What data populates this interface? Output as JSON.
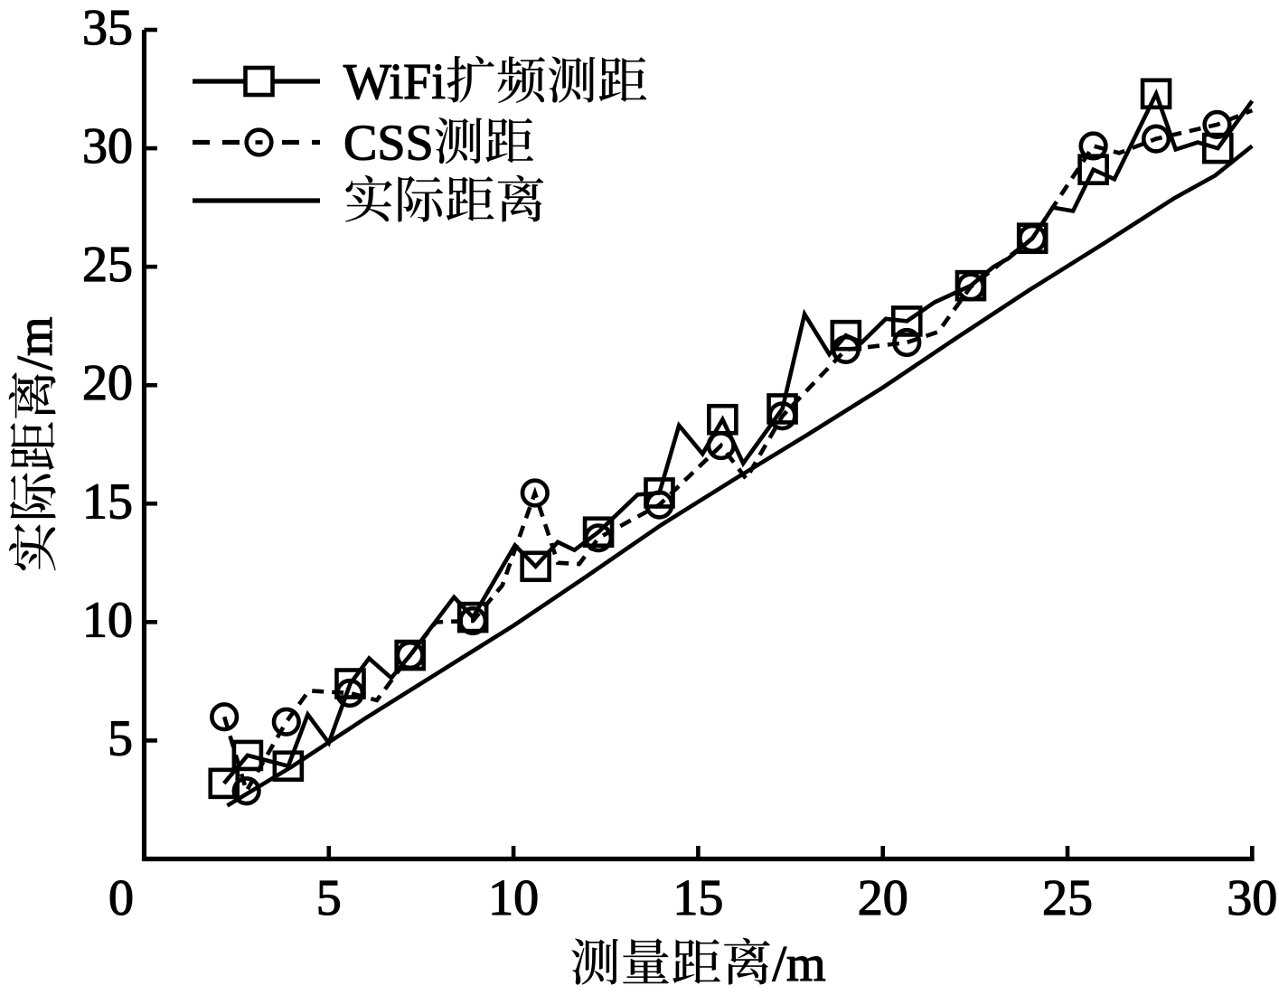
{
  "figure": {
    "background_color": "#ffffff",
    "ink_color": "#000000"
  },
  "chart_data": {
    "type": "line",
    "title": "",
    "xlabel": "测量距离/m",
    "ylabel": "实际距离/m",
    "xlim": [
      0,
      30
    ],
    "ylim": [
      0,
      35
    ],
    "xticks": [
      0,
      5,
      10,
      15,
      20,
      25,
      30
    ],
    "yticks": [
      5,
      10,
      15,
      20,
      25,
      30,
      35
    ],
    "grid": false,
    "legend_position": "upper left",
    "legend": [
      "WiFi扩频测距",
      "CSS测距",
      "实际距离"
    ],
    "series": [
      {
        "name": "WiFi扩频测距",
        "line_style": "solid",
        "marker": "square",
        "color": "#000000",
        "points": [
          [
            2.16,
            3.19
          ],
          [
            2.8,
            4.37
          ],
          [
            3.9,
            3.92
          ],
          [
            4.43,
            6.1
          ],
          [
            5.0,
            4.9
          ],
          [
            5.58,
            7.4
          ],
          [
            6.09,
            8.47
          ],
          [
            6.69,
            7.64
          ],
          [
            7.2,
            8.6
          ],
          [
            8.39,
            11.05
          ],
          [
            8.9,
            10.2
          ],
          [
            10.04,
            13.24
          ],
          [
            10.6,
            12.35
          ],
          [
            11.2,
            13.38
          ],
          [
            11.65,
            13.04
          ],
          [
            12.3,
            13.8
          ],
          [
            13.36,
            15.38
          ],
          [
            13.95,
            15.45
          ],
          [
            14.48,
            18.3
          ],
          [
            15.12,
            17.1
          ],
          [
            15.66,
            18.55
          ],
          [
            16.22,
            16.7
          ],
          [
            17.28,
            19.0
          ],
          [
            17.88,
            23.0
          ],
          [
            18.55,
            21.3
          ],
          [
            19.0,
            22.1
          ],
          [
            19.43,
            21.8
          ],
          [
            20.08,
            22.8
          ],
          [
            20.65,
            22.7
          ],
          [
            21.4,
            23.5
          ],
          [
            22.38,
            24.2
          ],
          [
            23.0,
            25.0
          ],
          [
            23.4,
            25.35
          ],
          [
            24.05,
            26.2
          ],
          [
            24.6,
            27.5
          ],
          [
            25.15,
            27.35
          ],
          [
            25.7,
            29.1
          ],
          [
            26.27,
            28.7
          ],
          [
            27.4,
            32.3
          ],
          [
            27.93,
            29.95
          ],
          [
            28.53,
            30.25
          ],
          [
            29.07,
            30.0
          ],
          [
            30.0,
            32.0
          ]
        ],
        "marker_points": [
          [
            2.16,
            3.19
          ],
          [
            2.8,
            4.37
          ],
          [
            3.9,
            3.92
          ],
          [
            5.58,
            7.4
          ],
          [
            7.2,
            8.6
          ],
          [
            8.9,
            10.2
          ],
          [
            10.6,
            12.35
          ],
          [
            12.3,
            13.8
          ],
          [
            13.95,
            15.45
          ],
          [
            15.66,
            18.55
          ],
          [
            17.28,
            19.0
          ],
          [
            19.0,
            22.1
          ],
          [
            20.65,
            22.7
          ],
          [
            22.38,
            24.2
          ],
          [
            24.05,
            26.2
          ],
          [
            25.7,
            29.1
          ],
          [
            27.4,
            32.3
          ],
          [
            29.07,
            30.0
          ]
        ]
      },
      {
        "name": "CSS测距",
        "line_style": "dashed",
        "marker": "circle",
        "color": "#000000",
        "points": [
          [
            2.17,
            6.0
          ],
          [
            2.77,
            2.87
          ],
          [
            3.85,
            5.79
          ],
          [
            4.46,
            7.1
          ],
          [
            5.57,
            7.0
          ],
          [
            6.3,
            6.7
          ],
          [
            7.2,
            8.6
          ],
          [
            7.9,
            10.0
          ],
          [
            8.9,
            10.05
          ],
          [
            9.7,
            11.55
          ],
          [
            10.58,
            15.45
          ],
          [
            11.2,
            12.5
          ],
          [
            11.78,
            12.45
          ],
          [
            12.3,
            13.55
          ],
          [
            13.95,
            14.95
          ],
          [
            15.62,
            17.45
          ],
          [
            16.3,
            16.05
          ],
          [
            17.28,
            18.7
          ],
          [
            19.0,
            21.5
          ],
          [
            20.65,
            21.8
          ],
          [
            21.5,
            22.25
          ],
          [
            22.38,
            24.15
          ],
          [
            24.05,
            26.2
          ],
          [
            25.7,
            30.1
          ],
          [
            26.4,
            29.8
          ],
          [
            27.4,
            30.4
          ],
          [
            29.05,
            31.0
          ],
          [
            30.0,
            31.6
          ]
        ],
        "marker_points": [
          [
            2.17,
            6.0
          ],
          [
            2.77,
            2.87
          ],
          [
            3.85,
            5.79
          ],
          [
            5.57,
            7.0
          ],
          [
            7.2,
            8.6
          ],
          [
            8.9,
            10.05
          ],
          [
            10.58,
            15.45
          ],
          [
            12.3,
            13.55
          ],
          [
            13.95,
            14.95
          ],
          [
            15.62,
            17.45
          ],
          [
            17.28,
            18.7
          ],
          [
            19.0,
            21.5
          ],
          [
            20.65,
            21.8
          ],
          [
            22.38,
            24.15
          ],
          [
            24.05,
            26.2
          ],
          [
            25.7,
            30.1
          ],
          [
            27.4,
            30.4
          ],
          [
            29.05,
            31.0
          ]
        ]
      },
      {
        "name": "实际距离",
        "line_style": "solid",
        "marker": "none",
        "color": "#000000",
        "points": [
          [
            2.25,
            2.25
          ],
          [
            4.0,
            3.9
          ],
          [
            6.0,
            5.95
          ],
          [
            8.0,
            7.9
          ],
          [
            10.0,
            9.85
          ],
          [
            12.0,
            11.95
          ],
          [
            14.0,
            14.1
          ],
          [
            16.0,
            16.05
          ],
          [
            18.0,
            17.95
          ],
          [
            20.0,
            19.9
          ],
          [
            22.0,
            22.0
          ],
          [
            24.0,
            24.05
          ],
          [
            26.0,
            26.0
          ],
          [
            27.9,
            27.9
          ],
          [
            29.0,
            28.85
          ],
          [
            30.0,
            30.1
          ]
        ],
        "marker_points": []
      }
    ]
  }
}
